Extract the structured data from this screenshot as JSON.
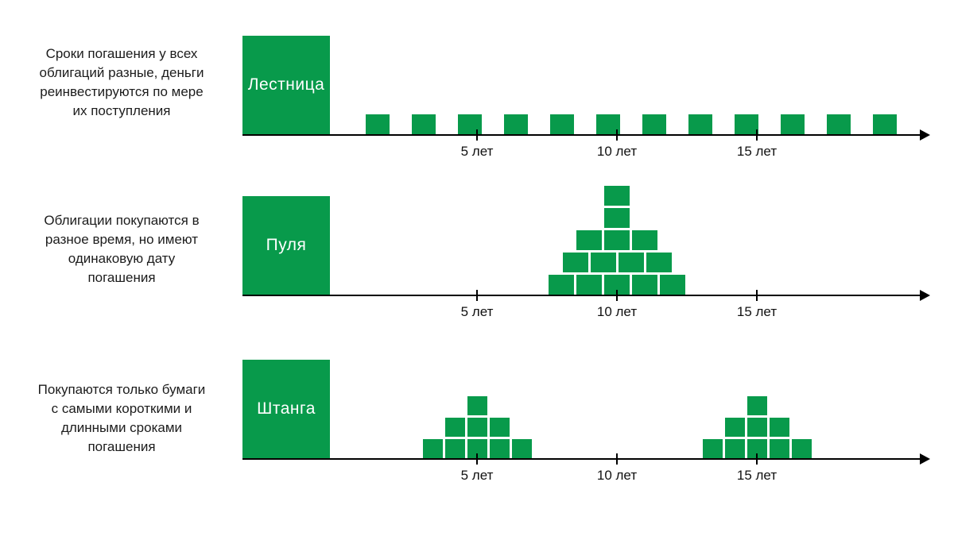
{
  "palette": {
    "green": "#089a4b",
    "axis": "#000000",
    "text": "#1c1c1c"
  },
  "rows": [
    {
      "id": "ladder",
      "label": "Лестница",
      "description_lines": [
        "Сроки погашения у всех",
        "облигаций разные, деньги",
        "реинвестируются по мере",
        "их поступления"
      ],
      "ticks": [
        "5 лет",
        "10 лет",
        "15 лет"
      ],
      "blocks": {
        "type": "even-row",
        "count": 12
      }
    },
    {
      "id": "bullet",
      "label": "Пуля",
      "description_lines": [
        "Облигации покупаются в",
        "разное время, но имеют",
        "одинаковую дату",
        "погашения"
      ],
      "ticks": [
        "5 лет",
        "10 лет",
        "15 лет"
      ],
      "blocks": {
        "type": "pyramid",
        "center_tick": "10 лет",
        "rows_top_to_bottom": [
          1,
          1,
          3,
          4,
          5
        ]
      }
    },
    {
      "id": "barbell",
      "label": "Штанга",
      "description_lines": [
        "Покупаются только бумаги",
        "с самыми короткими и",
        "длинными сроками",
        "погашения"
      ],
      "ticks": [
        "5 лет",
        "10 лет",
        "15 лет"
      ],
      "blocks": {
        "type": "double-pyramid",
        "center_ticks": [
          "5 лет",
          "15 лет"
        ],
        "rows_top_to_bottom": [
          1,
          3,
          5
        ]
      }
    }
  ]
}
